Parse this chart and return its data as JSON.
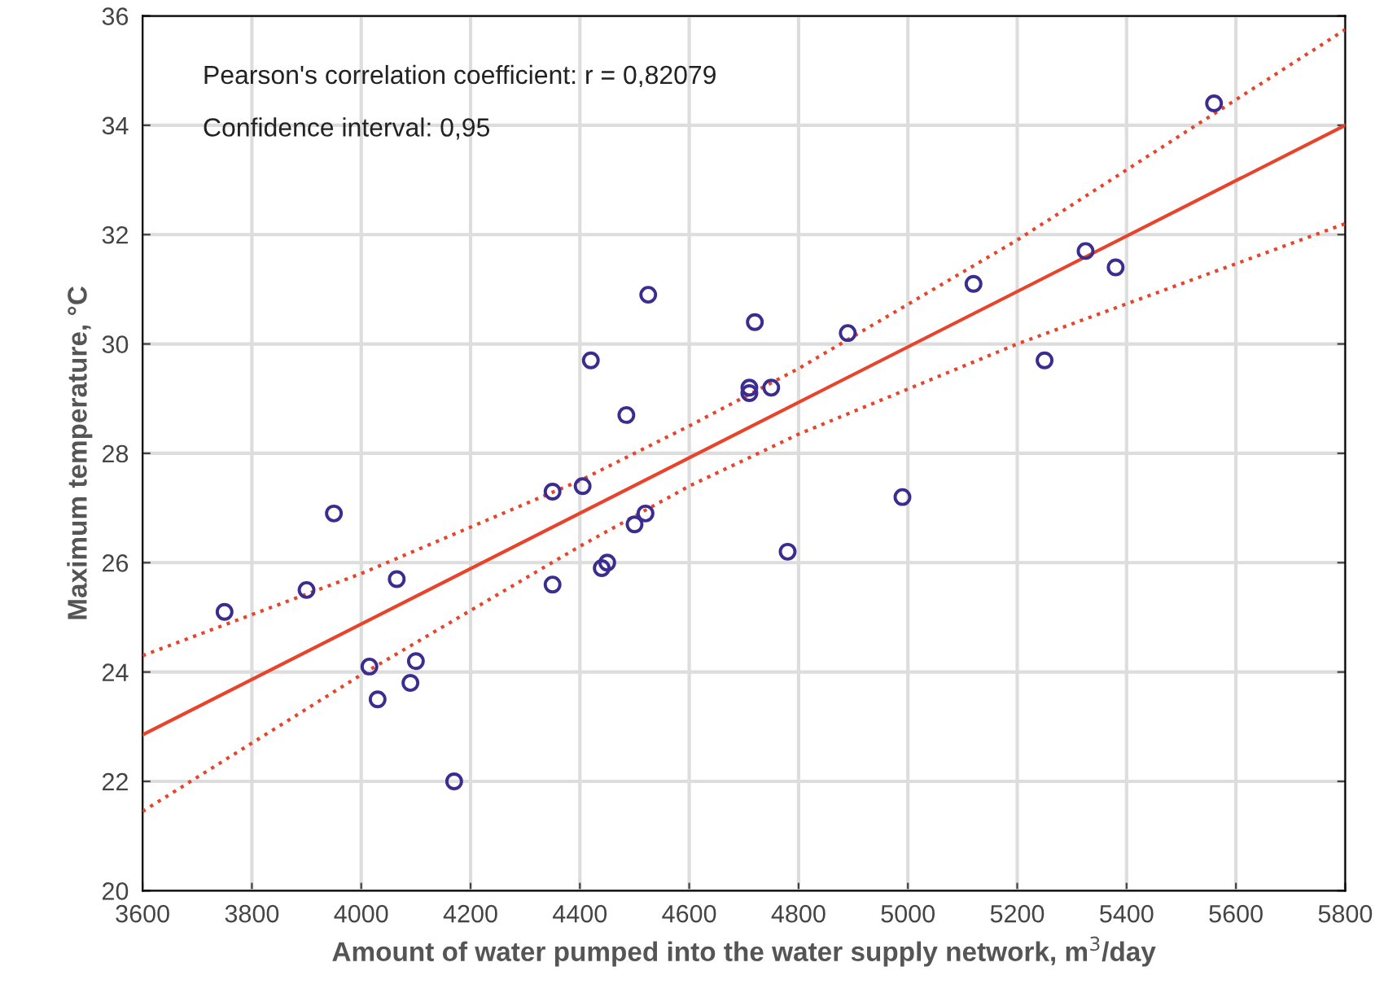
{
  "chart_data": {
    "type": "scatter",
    "xlabel": "Amount of water pumped into the water supply network, m$^{3}$/day",
    "ylabel": "Maximum temperature, °C",
    "annotations": [
      "Pearson's correlation coefficient: r = 0,82079",
      "Confidence interval: 0,95"
    ],
    "xlim": [
      3600,
      5800
    ],
    "xticks": [
      3600,
      3800,
      4000,
      4200,
      4400,
      4600,
      4800,
      5000,
      5200,
      5400,
      5600,
      5800
    ],
    "ylim": [
      20,
      36
    ],
    "yticks": [
      20,
      22,
      24,
      26,
      28,
      30,
      32,
      34,
      36
    ],
    "grid": true,
    "series": [
      {
        "color": "#3b2d8f",
        "marker": "circle",
        "x": [
          3750,
          3900,
          3950,
          4015,
          4030,
          4065,
          4090,
          4100,
          4170,
          4350,
          4350,
          4405,
          4420,
          4440,
          4450,
          4485,
          4500,
          4520,
          4525,
          4710,
          4710,
          4720,
          4750,
          4780,
          4890,
          4990,
          5120,
          5250,
          5325,
          5380,
          5560
        ],
        "values": [
          25.1,
          25.5,
          26.9,
          24.1,
          23.5,
          25.7,
          23.8,
          24.2,
          22.0,
          27.3,
          25.6,
          27.4,
          29.7,
          25.9,
          26.0,
          28.7,
          26.7,
          26.9,
          30.9,
          29.1,
          29.2,
          30.4,
          29.2,
          26.2,
          30.2,
          27.2,
          31.1,
          29.7,
          31.7,
          31.4,
          34.4
        ]
      },
      {
        "type": "line",
        "color": "#e8432b",
        "line_style": "solid",
        "x": [
          3600,
          5800
        ],
        "values": [
          22.85,
          34.0
        ]
      },
      {
        "type": "line",
        "color": "#e8432b",
        "line_style": "dotted",
        "x": [
          3600,
          4000,
          4400,
          4600,
          4800,
          5200,
          5800
        ],
        "values": [
          24.3,
          25.8,
          27.5,
          28.5,
          29.55,
          31.9,
          35.75
        ]
      },
      {
        "type": "line",
        "color": "#e8432b",
        "line_style": "dotted",
        "x": [
          3600,
          4000,
          4400,
          4600,
          4800,
          5200,
          5800
        ],
        "values": [
          21.45,
          23.95,
          26.3,
          27.4,
          28.35,
          30.0,
          32.2
        ]
      }
    ]
  }
}
